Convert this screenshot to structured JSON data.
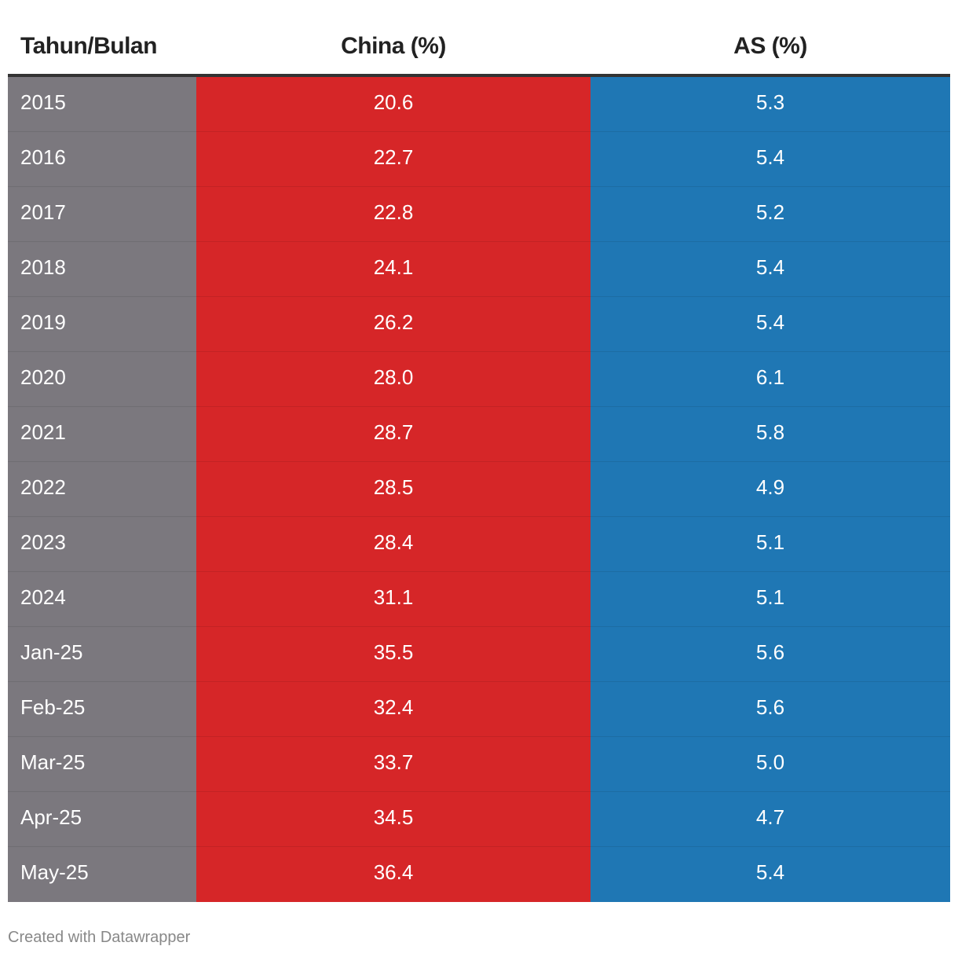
{
  "chart_data": {
    "type": "table",
    "columns": [
      "Tahun/Bulan",
      "China (%)",
      "AS (%)"
    ],
    "rows": [
      {
        "period": "2015",
        "china": "20.6",
        "as": "5.3"
      },
      {
        "period": "2016",
        "china": "22.7",
        "as": "5.4"
      },
      {
        "period": "2017",
        "china": "22.8",
        "as": "5.2"
      },
      {
        "period": "2018",
        "china": "24.1",
        "as": "5.4"
      },
      {
        "period": "2019",
        "china": "26.2",
        "as": "5.4"
      },
      {
        "period": "2020",
        "china": "28.0",
        "as": "6.1"
      },
      {
        "period": "2021",
        "china": "28.7",
        "as": "5.8"
      },
      {
        "period": "2022",
        "china": "28.5",
        "as": "4.9"
      },
      {
        "period": "2023",
        "china": "28.4",
        "as": "5.1"
      },
      {
        "period": "2024",
        "china": "31.1",
        "as": "5.1"
      },
      {
        "period": "Jan-25",
        "china": "35.5",
        "as": "5.6"
      },
      {
        "period": "Feb-25",
        "china": "32.4",
        "as": "5.6"
      },
      {
        "period": "Mar-25",
        "china": "33.7",
        "as": "5.0"
      },
      {
        "period": "Apr-25",
        "china": "34.5",
        "as": "4.7"
      },
      {
        "period": "May-25",
        "china": "36.4",
        "as": "5.4"
      }
    ],
    "colors": {
      "period": "#7b787e",
      "china": "#d62628",
      "as": "#1f77b4"
    }
  },
  "footer": "Created with Datawrapper"
}
